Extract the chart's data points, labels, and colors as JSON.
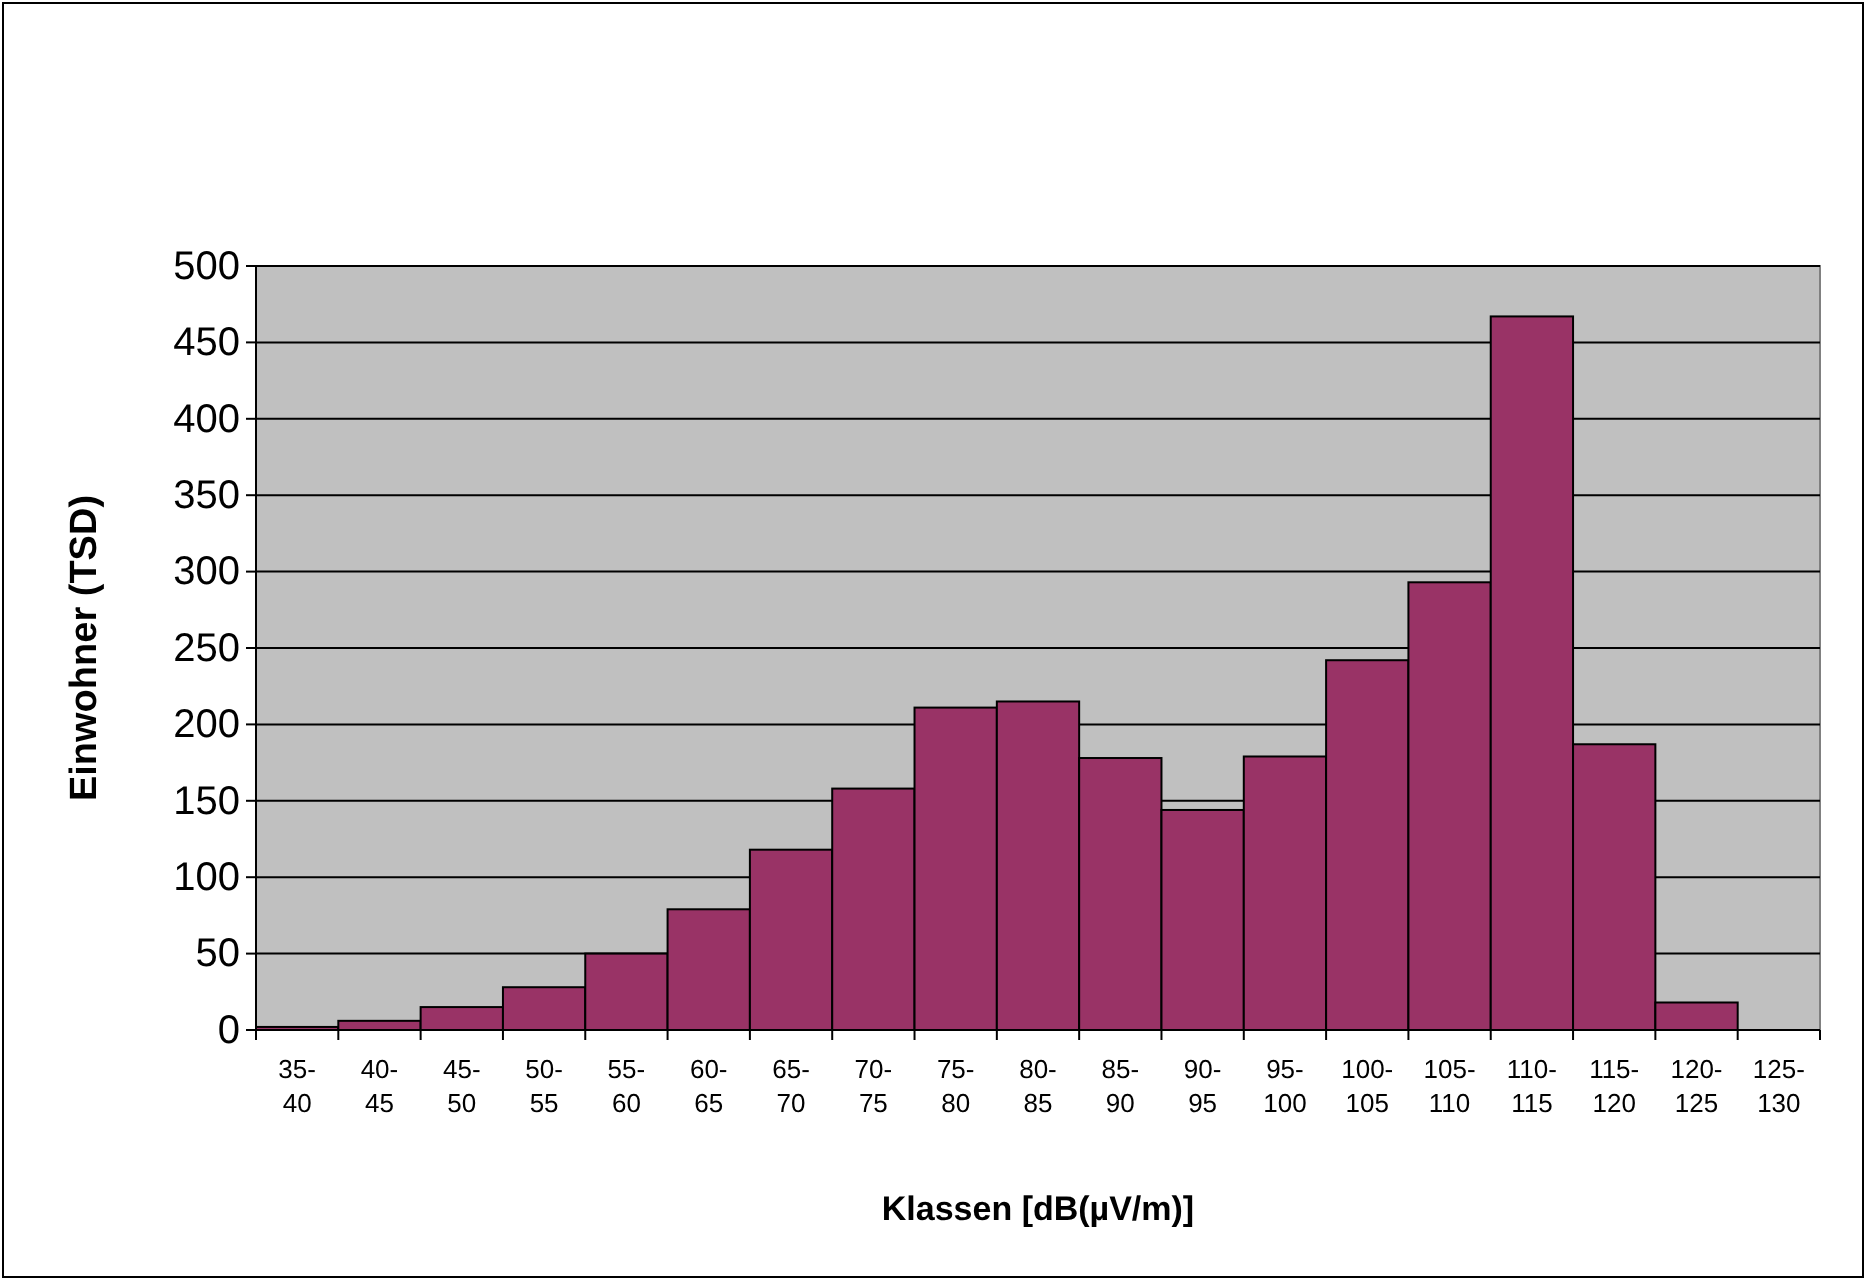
{
  "chart_data": {
    "type": "bar",
    "xlabel": "Klassen [dB(µV/m)]",
    "ylabel": "Einwohner (TSD)",
    "categories": [
      "35-40",
      "40-45",
      "45-50",
      "50-55",
      "55-60",
      "60-65",
      "65-70",
      "70-75",
      "75-80",
      "80-85",
      "85-90",
      "90-95",
      "95-100",
      "100-105",
      "105-110",
      "110-115",
      "115-120",
      "120-125",
      "125-130"
    ],
    "values": [
      2,
      6,
      15,
      28,
      50,
      79,
      118,
      158,
      211,
      215,
      178,
      144,
      179,
      242,
      293,
      467,
      187,
      18,
      0
    ],
    "color": "#993366",
    "ylim": [
      0,
      500
    ],
    "yticks": [
      0,
      50,
      100,
      150,
      200,
      250,
      300,
      350,
      400,
      450,
      500
    ],
    "grid": "y"
  }
}
